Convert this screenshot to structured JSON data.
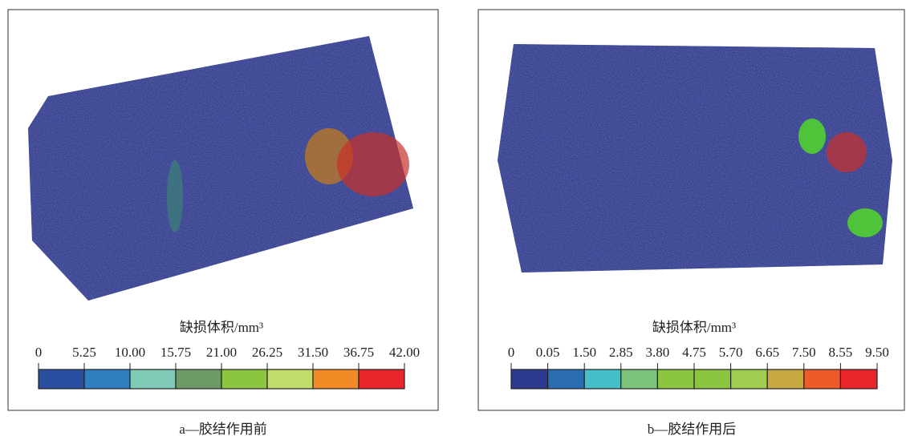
{
  "panels": [
    {
      "colorbar": {
        "title": "缺损体积/mm³",
        "ticks": [
          "0",
          "5.25",
          "10.00",
          "15.75",
          "21.00",
          "26.25",
          "31.50",
          "36.75",
          "42.00"
        ],
        "colors": [
          "#2a4fa0",
          "#2f7fc0",
          "#80cbb8",
          "#6e9a66",
          "#8cc63f",
          "#c2dc6a",
          "#f28a25",
          "#e8252a"
        ]
      },
      "caption": "a—胶结作用前"
    },
    {
      "colorbar": {
        "title": "缺损体积/mm³",
        "ticks": [
          "0",
          "0.05",
          "1.50",
          "2.85",
          "3.80",
          "4.75",
          "5.70",
          "6.65",
          "7.50",
          "8.55",
          "9.50"
        ],
        "colors": [
          "#2b3a8f",
          "#2a6db3",
          "#45c0c8",
          "#7cc47c",
          "#8cc63f",
          "#8cc63f",
          "#a0cc50",
          "#c8a840",
          "#ee5a28",
          "#e8252a"
        ]
      },
      "caption": "b—胶结作用后"
    }
  ]
}
